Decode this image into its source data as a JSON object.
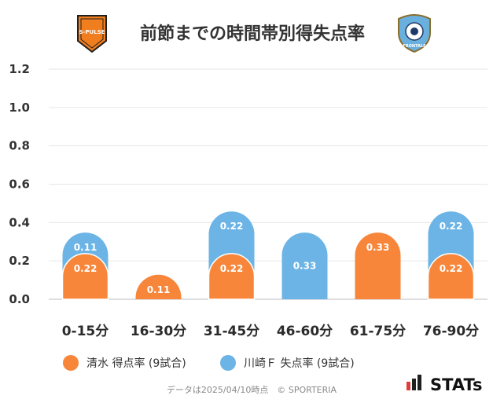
{
  "title": "前節までの時間帯別得失点率",
  "logos": {
    "left": {
      "text_top": "S-PULSE",
      "text_bottom": "SHIMIZU S-PULSE",
      "color": "#f07d1e"
    },
    "right": {
      "text": "FRONTALE",
      "color": "#6ab0df"
    }
  },
  "chart_data": {
    "type": "bar",
    "categories": [
      "0-15分",
      "16-30分",
      "31-45分",
      "46-60分",
      "61-75分",
      "76-90分"
    ],
    "series": [
      {
        "name": "清水 得点率 (9試合)",
        "values": [
          0.22,
          0.11,
          0.22,
          0,
          0.33,
          0.22
        ],
        "color": "#f7863a"
      },
      {
        "name": "川崎Ｆ 失点率 (9試合)",
        "values": [
          0.11,
          0,
          0.22,
          0.33,
          0,
          0.22
        ],
        "color": "#6cb4e6"
      }
    ],
    "ylim": [
      0,
      1.2
    ],
    "yticks": [
      "0.0",
      "0.2",
      "0.4",
      "0.6",
      "0.8",
      "1.0",
      "1.2"
    ],
    "grid": true,
    "legend": "bottom-left"
  },
  "footer": "データは2025/04/10時点　© SPORTERIA",
  "brand": "STATs"
}
